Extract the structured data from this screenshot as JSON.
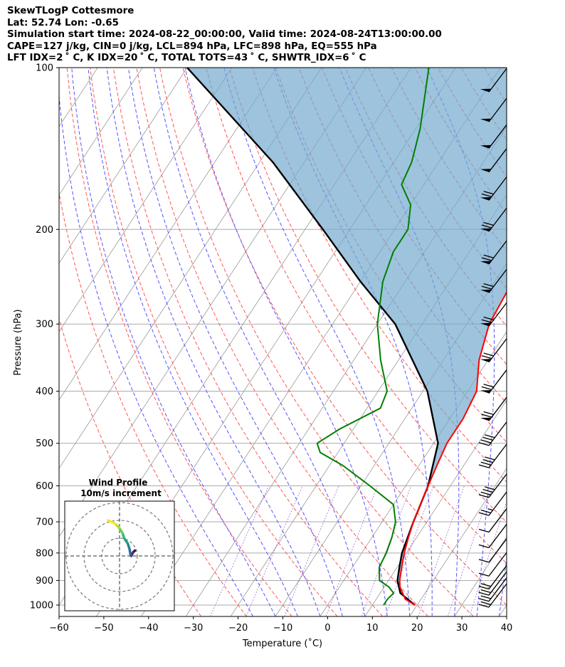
{
  "header": {
    "line1": "SkewTLogP Cottesmore",
    "line2": "Lat: 52.74   Lon: -0.65",
    "line3": "Simulation start time: 2024-08-22_00:00:00, Valid time: 2024-08-24T13:00:00.00",
    "line4": "CAPE=127 j/kg, CIN=0 j/kg, LCL=894 hPa, LFC=898 hPa, EQ=555 hPa",
    "line5": "LFT IDX=2 ˚ C, K IDX=20 ˚ C, TOTAL TOTS=43 ˚ C, SHWTR_IDX=6 ˚ C"
  },
  "chart_data": {
    "type": "skew-t log-p",
    "xlabel": "Temperature (˚C)",
    "ylabel": "Pressure (hPa)",
    "xlim": [
      -60,
      40
    ],
    "ylim": [
      1050,
      100
    ],
    "x_ticks": [
      "−60",
      "−50",
      "−40",
      "−30",
      "−20",
      "−10",
      "0",
      "10",
      "20",
      "30",
      "40"
    ],
    "y_ticks": [
      100,
      200,
      300,
      400,
      500,
      600,
      700,
      800,
      900,
      1000
    ],
    "temperature": [
      [
        1000,
        19.5
      ],
      [
        975,
        16.5
      ],
      [
        950,
        15
      ],
      [
        925,
        13.5
      ],
      [
        900,
        12.5
      ],
      [
        850,
        11
      ],
      [
        800,
        9.5
      ],
      [
        750,
        8.2
      ],
      [
        700,
        7
      ],
      [
        650,
        6
      ],
      [
        600,
        5
      ],
      [
        550,
        4
      ],
      [
        500,
        3
      ],
      [
        450,
        3
      ],
      [
        400,
        2
      ],
      [
        350,
        -2
      ],
      [
        300,
        -5
      ],
      [
        250,
        -6
      ],
      [
        220,
        -5
      ],
      [
        200,
        -2
      ],
      [
        180,
        0
      ],
      [
        160,
        5
      ],
      [
        140,
        9
      ],
      [
        120,
        12
      ],
      [
        100,
        14
      ]
    ],
    "dewpoint": [
      [
        1000,
        12.5
      ],
      [
        975,
        12.5
      ],
      [
        950,
        13
      ],
      [
        925,
        11
      ],
      [
        900,
        8
      ],
      [
        850,
        6
      ],
      [
        800,
        5.5
      ],
      [
        750,
        4.5
      ],
      [
        700,
        3
      ],
      [
        650,
        0
      ],
      [
        600,
        -8
      ],
      [
        550,
        -17
      ],
      [
        520,
        -24
      ],
      [
        500,
        -26
      ],
      [
        470,
        -23
      ],
      [
        430,
        -17
      ],
      [
        400,
        -18
      ],
      [
        350,
        -24
      ],
      [
        300,
        -30
      ],
      [
        250,
        -35
      ],
      [
        220,
        -37
      ],
      [
        200,
        -37
      ],
      [
        180,
        -40
      ],
      [
        165,
        -45
      ],
      [
        150,
        -46
      ],
      [
        130,
        -49
      ],
      [
        100,
        -56
      ]
    ],
    "parcel": [
      [
        1000,
        19.5
      ],
      [
        950,
        14.5
      ],
      [
        900,
        12
      ],
      [
        850,
        10.5
      ],
      [
        800,
        9
      ],
      [
        700,
        7
      ],
      [
        600,
        5
      ],
      [
        500,
        1
      ],
      [
        400,
        -9
      ],
      [
        300,
        -26
      ],
      [
        250,
        -40
      ],
      [
        200,
        -56
      ],
      [
        150,
        -77
      ],
      [
        100,
        -110
      ]
    ],
    "wind_barbs": [
      {
        "p": 1000,
        "u": -7.5,
        "v": 7
      },
      {
        "p": 975,
        "u": -7.5,
        "v": 7
      },
      {
        "p": 950,
        "u": -7.5,
        "v": 7
      },
      {
        "p": 925,
        "u": -7.5,
        "v": 7
      },
      {
        "p": 875,
        "u": -6,
        "v": 1
      },
      {
        "p": 825,
        "u": -6,
        "v": 1
      },
      {
        "p": 775,
        "u": -6,
        "v": 1
      },
      {
        "p": 725,
        "u": -6,
        "v": 1
      },
      {
        "p": 675,
        "u": -9,
        "v": 9
      },
      {
        "p": 625,
        "u": -12,
        "v": 16
      },
      {
        "p": 550,
        "u": -12,
        "v": 16
      },
      {
        "p": 500,
        "u": -12,
        "v": 16
      },
      {
        "p": 450,
        "u": -25,
        "v": 25
      },
      {
        "p": 400,
        "u": -25,
        "v": 25
      },
      {
        "p": 350,
        "u": -25,
        "v": 25
      },
      {
        "p": 300,
        "u": -25,
        "v": 25
      },
      {
        "p": 260,
        "u": -25,
        "v": 25
      },
      {
        "p": 230,
        "u": -25,
        "v": 25
      },
      {
        "p": 200,
        "u": -25,
        "v": 25
      },
      {
        "p": 175,
        "u": -25,
        "v": 25
      },
      {
        "p": 155,
        "u": -18,
        "v": 20
      },
      {
        "p": 140,
        "u": -18,
        "v": 20
      },
      {
        "p": 125,
        "u": -18,
        "v": 20
      },
      {
        "p": 110,
        "u": -18,
        "v": 20
      }
    ],
    "hodograph": {
      "title": "Wind Profile",
      "subtitle": "10m/s increment",
      "points": [
        [
          -1,
          3
        ],
        [
          -2,
          2
        ],
        [
          -3,
          0
        ],
        [
          -3.5,
          1
        ],
        [
          -4,
          4
        ],
        [
          -5,
          7
        ],
        [
          -7,
          10
        ],
        [
          -8,
          13
        ],
        [
          -10,
          16
        ],
        [
          -12,
          18
        ],
        [
          -14,
          19
        ],
        [
          -16,
          20
        ]
      ]
    }
  },
  "colors": {
    "temperature": "#ff0000",
    "dewpoint": "#008000",
    "parcel": "#000000",
    "cape_fill": "#74a9cf",
    "cin_fill": "#ee6e6e",
    "dry_adiabat": "#ff5555",
    "moist_adiabat": "#5555ff",
    "mixing_ratio": "#4444ee",
    "isotherm": "#999999"
  }
}
